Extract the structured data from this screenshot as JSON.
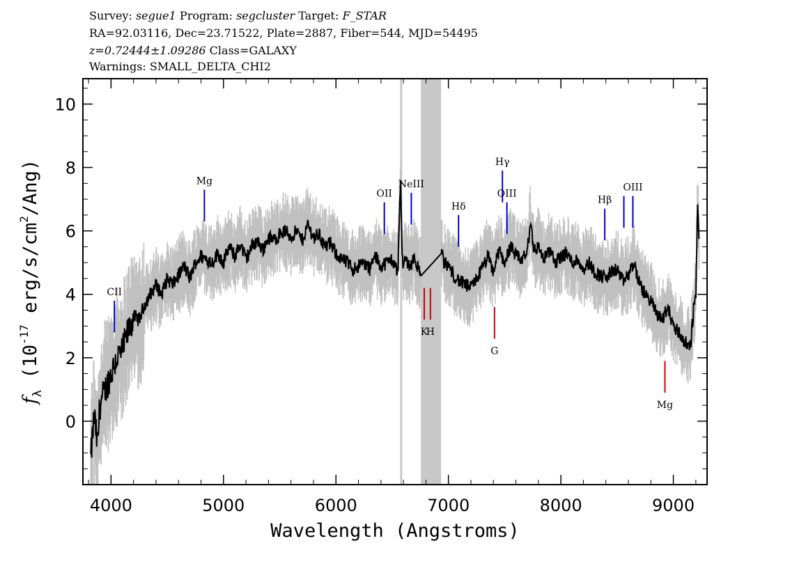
{
  "header": {
    "survey_label": "Survey:",
    "survey": "segue1",
    "program_label": "Program:",
    "program": "segcluster",
    "target_label": "Target:",
    "target": "F_STAR",
    "line2": "RA=92.03116, Dec=23.71522, Plate=2887, Fiber=544, MJD=54495",
    "redshift": "z=0.72444±1.09286",
    "class": "Class=GALAXY",
    "warnings": "Warnings: SMALL_DELTA_CHI2"
  },
  "chart_data": {
    "type": "line",
    "xlabel": "Wavelength (Angstroms)",
    "ylabel": "f_λ (10^-17 erg/s/cm^2/Ang)",
    "xlim": [
      3750,
      9300
    ],
    "ylim": [
      -2,
      10.8
    ],
    "xticks": [
      4000,
      5000,
      6000,
      7000,
      8000,
      9000
    ],
    "yticks": [
      0,
      2,
      4,
      6,
      8,
      10
    ],
    "grid": false,
    "colors": {
      "spectrum": "#000000",
      "noise": "#c0c0c0",
      "mask": "#c8c8c8",
      "emission": "#0000cc",
      "absorption": "#cc0000"
    },
    "masked_band": [
      6755,
      6935
    ],
    "masked_line": 6580,
    "series": [
      {
        "x": [
          3820,
          3850,
          3880,
          3900,
          3950,
          4000,
          4050,
          4100,
          4150,
          4200,
          4250,
          4300,
          4350,
          4400,
          4450,
          4500,
          4550,
          4600,
          4650,
          4700,
          4750,
          4800,
          4850,
          4900,
          4950,
          5000,
          5050,
          5100,
          5150,
          5200,
          5250,
          5300,
          5350,
          5400,
          5450,
          5500,
          5550,
          5600,
          5650,
          5700,
          5750,
          5800,
          5850,
          5900,
          5950,
          6000,
          6050,
          6100,
          6150,
          6200,
          6250,
          6300,
          6350,
          6400,
          6450,
          6500,
          6550,
          6575,
          6590,
          6620,
          6660,
          6700,
          6740,
          6760,
          6940,
          6960,
          7000,
          7050,
          7100,
          7150,
          7200,
          7250,
          7300,
          7350,
          7400,
          7450,
          7500,
          7550,
          7600,
          7650,
          7700,
          7730,
          7760,
          7800,
          7850,
          7900,
          7950,
          8000,
          8050,
          8100,
          8150,
          8200,
          8250,
          8300,
          8350,
          8400,
          8450,
          8500,
          8550,
          8600,
          8650,
          8700,
          8750,
          8800,
          8850,
          8900,
          8950,
          9000,
          9050,
          9100,
          9150,
          9180,
          9200,
          9215,
          9230
        ],
        "y": [
          -1.2,
          0.2,
          -0.8,
          0.5,
          1.0,
          1.5,
          2.0,
          2.2,
          2.8,
          3.3,
          3.2,
          3.7,
          4.0,
          4.3,
          4.0,
          4.5,
          4.3,
          4.6,
          4.9,
          4.5,
          5.0,
          5.2,
          5.1,
          5.0,
          5.3,
          5.0,
          5.5,
          5.2,
          5.6,
          5.1,
          5.5,
          5.7,
          5.4,
          5.8,
          5.7,
          5.9,
          6.0,
          5.8,
          6.0,
          5.7,
          6.2,
          5.8,
          5.9,
          5.5,
          5.6,
          5.3,
          5.1,
          5.0,
          4.8,
          4.9,
          5.0,
          4.8,
          5.2,
          4.9,
          5.0,
          5.1,
          4.7,
          7.7,
          5.0,
          5.1,
          4.9,
          5.2,
          4.7,
          4.6,
          5.3,
          5.0,
          4.9,
          4.6,
          4.4,
          4.3,
          4.2,
          4.5,
          4.8,
          5.2,
          4.7,
          5.4,
          5.0,
          5.5,
          5.2,
          5.1,
          5.3,
          6.3,
          5.4,
          5.5,
          5.1,
          5.4,
          5.0,
          5.2,
          5.3,
          5.0,
          5.1,
          4.8,
          5.0,
          4.7,
          4.6,
          4.5,
          4.7,
          4.8,
          4.4,
          4.6,
          5.0,
          4.3,
          4.0,
          3.8,
          3.4,
          3.2,
          3.6,
          3.0,
          2.8,
          2.5,
          2.3,
          3.5,
          4.0,
          6.8,
          5.5
        ]
      }
    ],
    "emission_lines": [
      {
        "label": "CII",
        "x": 4030,
        "y0": 2.8,
        "y1": 3.8
      },
      {
        "label": "Mg",
        "x": 4830,
        "y0": 6.3,
        "y1": 7.3
      },
      {
        "label": "OII",
        "x": 6430,
        "y0": 5.9,
        "y1": 6.9
      },
      {
        "label": "NeIII",
        "x": 6670,
        "y0": 6.2,
        "y1": 7.2
      },
      {
        "label": "Hδ",
        "x": 7090,
        "y0": 5.5,
        "y1": 6.5
      },
      {
        "label": "Hγ",
        "x": 7480,
        "y0": 6.9,
        "y1": 7.9
      },
      {
        "label": "OIII",
        "x": 7520,
        "y0": 5.9,
        "y1": 6.9
      },
      {
        "label": "Hβ",
        "x": 8390,
        "y0": 5.7,
        "y1": 6.7
      },
      {
        "label": "",
        "x": 8560,
        "y0": 6.1,
        "y1": 7.1
      },
      {
        "label": "OIII",
        "x": 8640,
        "y0": 6.1,
        "y1": 7.1
      }
    ],
    "absorption_lines": [
      {
        "label": "K",
        "x": 6785,
        "y0": 3.2,
        "y1": 4.2
      },
      {
        "label": "H",
        "x": 6840,
        "y0": 3.2,
        "y1": 4.2
      },
      {
        "label": "G",
        "x": 7410,
        "y0": 2.6,
        "y1": 3.6
      },
      {
        "label": "Mg",
        "x": 8925,
        "y0": 0.9,
        "y1": 1.9
      }
    ]
  }
}
